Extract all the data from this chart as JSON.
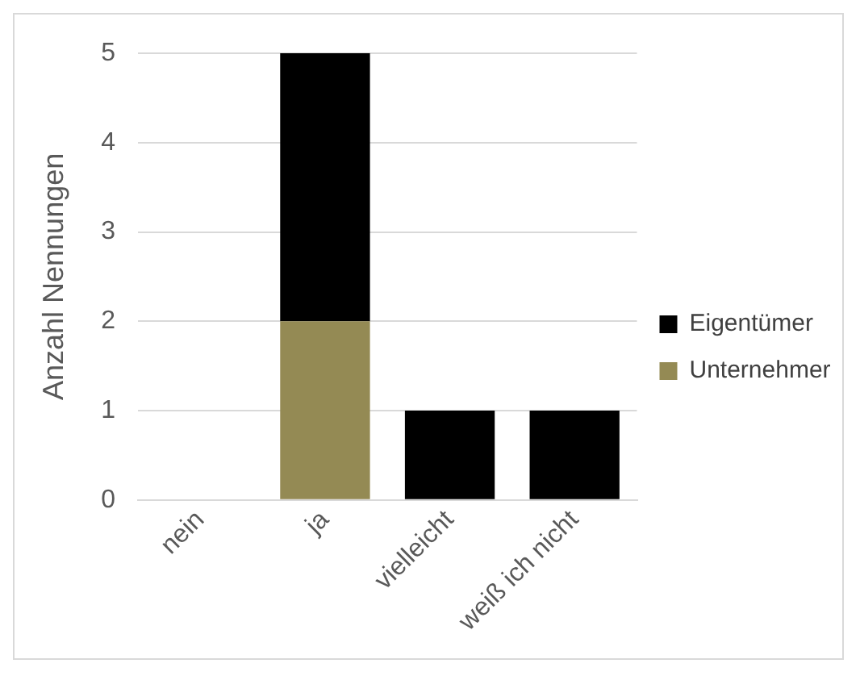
{
  "chart_data": {
    "type": "bar",
    "stacked": true,
    "ylabel": "Anzahl Nennungen",
    "categories": [
      "nein",
      "ja",
      "vielleicht",
      "weiß ich nicht"
    ],
    "series": [
      {
        "name": "Unternehmer",
        "color": "#948a54",
        "values": [
          0,
          2,
          0,
          0
        ]
      },
      {
        "name": "Eigentümer",
        "color": "#000000",
        "values": [
          0,
          3,
          1,
          1
        ]
      }
    ],
    "ylim": [
      0,
      5
    ],
    "yticks": [
      0,
      1,
      2,
      3,
      4,
      5
    ],
    "grid": "y",
    "legend": "right"
  }
}
